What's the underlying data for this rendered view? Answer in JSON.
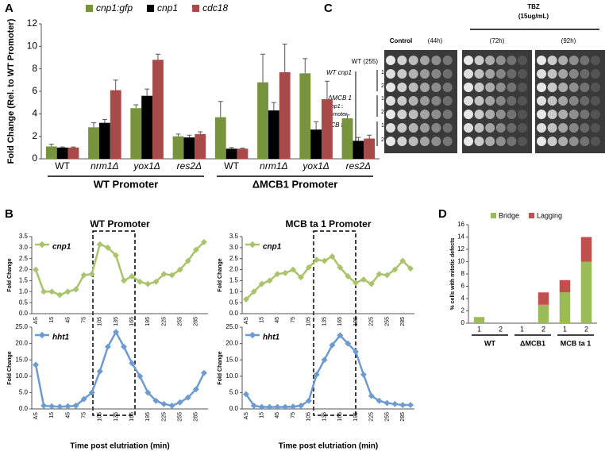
{
  "panel_labels": [
    "A",
    "B",
    "C",
    "D"
  ],
  "spot_assay": {
    "control": "Control",
    "control_time": "(44h)",
    "treatment": "TBZ",
    "treatment_dose": "(15ug/mL)",
    "times": [
      "(72h)",
      "(92h)"
    ],
    "strains": [
      "WT (255)",
      "WT cnp1",
      "ΔMCB 1",
      "MCB ta 1"
    ],
    "construct": "cnp1::",
    "construct_suffix": "Promoter",
    "replicates": [
      "1",
      "2"
    ]
  },
  "chart_data": [
    {
      "type": "bar",
      "y_label": "Fold Change (Rel. to WT Promoter)",
      "categories": [
        "WT",
        "nrm1Δ",
        "yox1Δ",
        "res2Δ",
        "WT",
        "nrm1Δ",
        "yox1Δ",
        "res2Δ"
      ],
      "groups": [
        "WT Promoter",
        "ΔMCB1 Promoter"
      ],
      "series": [
        {
          "name": "cnp1:gfp",
          "color": "#77933c",
          "values": [
            1.1,
            2.8,
            4.5,
            2.0,
            3.7,
            6.8,
            7.6,
            3.6
          ],
          "errors": [
            0.2,
            0.4,
            0.3,
            0.2,
            1.4,
            2.5,
            1.3,
            0.3
          ]
        },
        {
          "name": "cnp1",
          "color": "#000000",
          "values": [
            1.0,
            3.2,
            5.6,
            1.9,
            0.9,
            4.3,
            2.6,
            1.6
          ],
          "errors": [
            0.05,
            0.3,
            0.6,
            0.2,
            0.1,
            0.7,
            0.7,
            0.3
          ]
        },
        {
          "name": "cdc18",
          "color": "#a94a4a",
          "values": [
            1.0,
            6.1,
            8.8,
            2.2,
            0.9,
            7.7,
            5.3,
            1.8
          ],
          "errors": [
            0.05,
            0.9,
            0.5,
            0.2,
            0.05,
            2.5,
            1.6,
            0.3
          ]
        }
      ],
      "ylim": [
        0,
        12
      ],
      "yticks": [
        0,
        2,
        4,
        6,
        8,
        10,
        12
      ]
    },
    {
      "type": "line",
      "title": "WT Promoter",
      "y_label": "Fold Change",
      "categories": [
        "AS",
        null,
        "15",
        null,
        "45",
        null,
        "75",
        null,
        "105",
        null,
        "135",
        null,
        "165",
        null,
        "195",
        null,
        "225",
        null,
        "255",
        null,
        "285",
        null
      ],
      "series": [
        {
          "name": "cnp1",
          "color": "#a9c46a",
          "values": [
            2.0,
            1.0,
            1.0,
            0.85,
            1.0,
            1.1,
            1.75,
            1.8,
            3.15,
            3.0,
            2.65,
            1.5,
            1.7,
            1.45,
            1.35,
            1.45,
            1.8,
            1.75,
            2.0,
            2.4,
            2.9,
            3.25
          ]
        }
      ],
      "ylim": [
        0,
        3.5
      ],
      "yticks": [
        {
          "value": 0,
          "label": "0.0"
        },
        0.5,
        {
          "value": 1,
          "label": "1.0"
        },
        1.5,
        {
          "value": 2,
          "label": "2.0"
        },
        2.5,
        {
          "value": 3,
          "label": "3.0"
        },
        3.5
      ]
    },
    {
      "type": "line",
      "y_label": "Fold Change",
      "x_label": "Time post elutriation (min)",
      "categories": [
        "AS",
        null,
        "15",
        null,
        "45",
        null,
        "75",
        null,
        "105",
        null,
        "135",
        null,
        "165",
        null,
        "195",
        null,
        "225",
        null,
        "255",
        null,
        "285",
        null
      ],
      "series": [
        {
          "name": "hht1",
          "color": "#6d9bd1",
          "values": [
            13.5,
            1.0,
            0.8,
            0.7,
            0.8,
            1.0,
            3.0,
            5.0,
            11.5,
            19.0,
            23.5,
            19.0,
            14.0,
            10.0,
            5.0,
            2.5,
            1.5,
            1.0,
            2.0,
            3.5,
            6.0,
            11.0
          ]
        }
      ],
      "ylim": [
        0,
        25
      ],
      "yticks": [
        {
          "value": 0,
          "label": "0.0"
        },
        {
          "value": 5,
          "label": "5.0"
        },
        {
          "value": 10,
          "label": "10.0"
        },
        {
          "value": 15,
          "label": "15.0"
        },
        {
          "value": 20,
          "label": "20.0"
        },
        {
          "value": 25,
          "label": "25.0"
        }
      ]
    },
    {
      "type": "line",
      "title": "MCB ta 1 Promoter",
      "y_label": "Fold Change",
      "categories": [
        "AS",
        null,
        "15",
        null,
        "45",
        null,
        "75",
        null,
        "105",
        null,
        "135",
        null,
        "165",
        null,
        "195",
        null,
        "225",
        null,
        "255",
        null,
        "285",
        null
      ],
      "series": [
        {
          "name": "cnp1",
          "color": "#a9c46a",
          "values": [
            0.65,
            1.0,
            1.35,
            1.5,
            1.8,
            1.85,
            2.0,
            1.65,
            2.1,
            2.45,
            2.4,
            2.6,
            2.1,
            1.7,
            1.4,
            1.55,
            1.35,
            1.8,
            1.75,
            2.0,
            2.4,
            2.05
          ]
        }
      ],
      "ylim": [
        0,
        3.5
      ],
      "yticks": [
        {
          "value": 0,
          "label": "0.0"
        },
        0.5,
        {
          "value": 1,
          "label": "1.0"
        },
        1.5,
        {
          "value": 2,
          "label": "2.0"
        },
        2.5,
        {
          "value": 3,
          "label": "3.0"
        },
        3.5
      ]
    },
    {
      "type": "line",
      "y_label": "Fold Change",
      "x_label": "Time post elutriation (min)",
      "categories": [
        "AS",
        null,
        "15",
        null,
        "45",
        null,
        "75",
        null,
        "105",
        null,
        "135",
        null,
        "165",
        null,
        "195",
        null,
        "225",
        null,
        "255",
        null,
        "285",
        null
      ],
      "series": [
        {
          "name": "hht1",
          "color": "#6d9bd1",
          "values": [
            4.5,
            1.0,
            0.6,
            0.6,
            0.6,
            0.6,
            0.7,
            1.0,
            2.5,
            10.5,
            15.0,
            19.5,
            22.5,
            20.0,
            17.5,
            10.5,
            4.0,
            2.5,
            1.8,
            1.5,
            1.2,
            1.2
          ]
        }
      ],
      "ylim": [
        0,
        25
      ],
      "yticks": [
        {
          "value": 0,
          "label": "0.0"
        },
        {
          "value": 5,
          "label": "5.0"
        },
        {
          "value": 10,
          "label": "10.0"
        },
        {
          "value": 15,
          "label": "15.0"
        },
        {
          "value": 20,
          "label": "20.0"
        },
        {
          "value": 25,
          "label": "25.0"
        }
      ]
    },
    {
      "type": "stacked_bar",
      "y_label": "% cells with mitotic defects",
      "categories": [
        "1",
        "2",
        "1",
        "2",
        "1",
        "2"
      ],
      "groups": [
        "WT",
        "ΔMCB1",
        "MCB ta 1"
      ],
      "series": [
        {
          "name": "Bridge",
          "color": "#9bbb59",
          "values": [
            1,
            0,
            0,
            3,
            5,
            10
          ]
        },
        {
          "name": "Lagging",
          "color": "#c0504d",
          "values": [
            0,
            0,
            0,
            2,
            2,
            4
          ]
        }
      ],
      "ylim": [
        0,
        16
      ],
      "yticks": [
        0,
        2,
        4,
        6,
        8,
        10,
        12,
        14,
        16
      ]
    }
  ]
}
